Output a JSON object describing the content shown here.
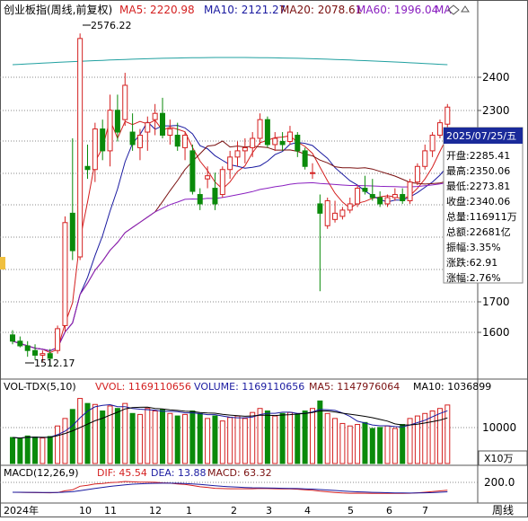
{
  "main_header": {
    "title": "创业板指(周线,前复权)",
    "ma5": "MA5: 2220.98",
    "ma10": "MA10: 2121.27",
    "ma20": "MA20: 2078.61",
    "ma60": "MA60: 1996.04",
    "ma_more": "MA"
  },
  "vol_header": {
    "title": "VOL-TDX(5,10)",
    "vvol": "VVOL: 1169110656",
    "volume": "VOLUME: 1169110656",
    "ma5": "MA5: 1147976064",
    "ma10": "MA10: 1036899"
  },
  "macd_header": {
    "title": "MACD(12,26,9)",
    "dif": "DIF: 45.54",
    "dea": "DEA: 13.88",
    "macd": "MACD: 63.32"
  },
  "price_axis": [
    "2400",
    "2300",
    "1700",
    "1600"
  ],
  "vol_axis": {
    "label": "10000",
    "unit": "X10万"
  },
  "macd_axis": "200.0",
  "period_label": "周线",
  "x_axis": [
    "2024年",
    "10",
    "11",
    "12",
    "1",
    "2",
    "3",
    "4",
    "5",
    "6",
    "7"
  ],
  "annotations": {
    "high": "2576.22",
    "low": "1512.17"
  },
  "info_box": {
    "date": "2025/07/25/五",
    "rows": [
      "开盘:2285.41",
      "最高:2350.06",
      "最低:2273.81",
      "收盘:2340.06",
      "总量:116911万",
      "总额:22681亿",
      "振幅:3.35%",
      "涨跌:62.91",
      "涨幅:2.76%"
    ]
  },
  "colors": {
    "up": "#d42020",
    "down": "#0a8a0a",
    "ma5": "#d42020",
    "ma10": "#1a1aa0",
    "ma20": "#7a1010",
    "ma60": "#8a20c0",
    "long": "#20a0a0"
  },
  "chart_data": {
    "type": "candlestick",
    "ylim": [
      1480,
      2620
    ],
    "candles": [
      [
        1610,
        1625,
        1580,
        1590
      ],
      [
        1590,
        1605,
        1570,
        1575
      ],
      [
        1575,
        1590,
        1540,
        1560
      ],
      [
        1560,
        1580,
        1530,
        1545
      ],
      [
        1545,
        1560,
        1525,
        1550
      ],
      [
        1550,
        1565,
        1512.17,
        1535
      ],
      [
        1560,
        1640,
        1550,
        1630
      ],
      [
        1640,
        1990,
        1620,
        1970
      ],
      [
        2000,
        2240,
        1850,
        1880
      ],
      [
        1860,
        2576.22,
        1850,
        2560
      ],
      [
        2150,
        2220,
        2110,
        2140
      ],
      [
        2140,
        2290,
        2100,
        2270
      ],
      [
        2270,
        2300,
        2170,
        2200
      ],
      [
        2200,
        2380,
        2150,
        2330
      ],
      [
        2330,
        2380,
        2230,
        2260
      ],
      [
        2300,
        2450,
        2280,
        2410
      ],
      [
        2260,
        2320,
        2200,
        2220
      ],
      [
        2210,
        2270,
        2170,
        2250
      ],
      [
        2260,
        2310,
        2200,
        2290
      ],
      [
        2300,
        2350,
        2250,
        2320
      ],
      [
        2320,
        2370,
        2240,
        2250
      ],
      [
        2250,
        2300,
        2220,
        2270
      ],
      [
        2250,
        2290,
        2200,
        2215
      ],
      [
        2210,
        2260,
        2170,
        2250
      ],
      [
        2200,
        2220,
        2060,
        2070
      ],
      [
        2060,
        2080,
        2010,
        2030
      ],
      [
        2110,
        2150,
        2080,
        2120
      ],
      [
        2080,
        2130,
        2010,
        2030
      ],
      [
        2060,
        2150,
        2050,
        2140
      ],
      [
        2140,
        2200,
        2110,
        2180
      ],
      [
        2180,
        2230,
        2150,
        2200
      ],
      [
        2200,
        2240,
        2160,
        2210
      ],
      [
        2210,
        2260,
        2180,
        2240
      ],
      [
        2240,
        2320,
        2220,
        2300
      ],
      [
        2300,
        2310,
        2210,
        2220
      ],
      [
        2220,
        2260,
        2200,
        2240
      ],
      [
        2230,
        2260,
        2200,
        2220
      ],
      [
        2230,
        2280,
        2220,
        2260
      ],
      [
        2250,
        2260,
        2180,
        2200
      ],
      [
        2200,
        2210,
        2140,
        2150
      ],
      [
        2130,
        2160,
        2110,
        2130
      ],
      [
        2030,
        2060,
        1750,
        2000
      ],
      [
        1960,
        2050,
        1950,
        2040
      ],
      [
        1980,
        2040,
        1970,
        2000
      ],
      [
        1990,
        2020,
        1980,
        2010
      ],
      [
        2010,
        2050,
        2000,
        2030
      ],
      [
        2030,
        2090,
        2020,
        2080
      ],
      [
        2080,
        2120,
        2060,
        2070
      ],
      [
        2060,
        2110,
        2040,
        2050
      ],
      [
        2050,
        2070,
        2020,
        2030
      ],
      [
        2030,
        2060,
        2020,
        2050
      ],
      [
        2050,
        2080,
        2040,
        2060
      ],
      [
        2060,
        2080,
        2030,
        2040
      ],
      [
        2040,
        2110,
        2030,
        2100
      ],
      [
        2100,
        2160,
        2090,
        2150
      ],
      [
        2150,
        2220,
        2140,
        2200
      ],
      [
        2200,
        2260,
        2180,
        2250
      ],
      [
        2250,
        2300,
        2240,
        2290
      ],
      [
        2285.41,
        2350.06,
        2273.81,
        2340.06
      ]
    ],
    "volume": [
      5200,
      5000,
      5500,
      5300,
      5100,
      5400,
      7500,
      9000,
      10800,
      13000,
      12000,
      11800,
      10500,
      11500,
      11000,
      12000,
      10000,
      9800,
      11000,
      10500,
      10800,
      10000,
      9500,
      9800,
      10500,
      10000,
      9000,
      9500,
      8500,
      9200,
      9500,
      9000,
      10200,
      11000,
      10500,
      9500,
      10000,
      10200,
      9800,
      10500,
      11000,
      12500,
      10000,
      9000,
      8000,
      7500,
      7800,
      8200,
      7000,
      7200,
      7500,
      7000,
      7800,
      9000,
      9500,
      10000,
      10500,
      11000,
      11691
    ]
  }
}
